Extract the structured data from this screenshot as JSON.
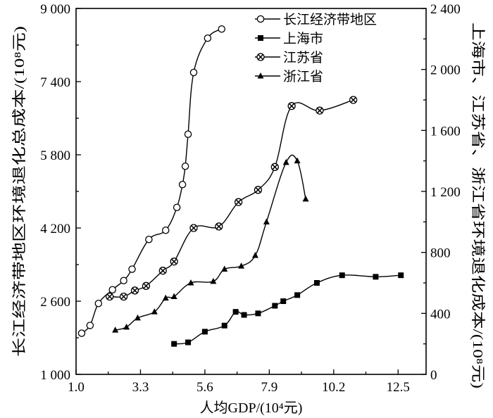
{
  "chart_data": {
    "type": "line",
    "xlabel": "人均GDP/(10⁴元)",
    "ylabel_left": "长江经济带地区环境退化总成本/(10⁸元)",
    "ylabel_right": "上海市、江苏省、浙江省环境退化成本/(10⁸元)",
    "xlim": [
      1.0,
      13.5
    ],
    "ylim_left": [
      1000,
      9000
    ],
    "ylim_right": [
      0,
      2400
    ],
    "x_ticks": [
      "1.0",
      "3.3",
      "5.6",
      "7.9",
      "10.2",
      "12.5"
    ],
    "y_left_ticks": [
      "1 000",
      "2 600",
      "4 200",
      "5 800",
      "7 400",
      "9 000"
    ],
    "y_right_ticks": [
      "0",
      "400",
      "800",
      "1 200",
      "1 600",
      "2 000",
      "2 400"
    ],
    "legend_position": "top-right",
    "series": [
      {
        "name": "长江经济带地区",
        "axis": "left",
        "marker": "circle-open",
        "x": [
          1.2,
          1.5,
          1.8,
          2.3,
          2.7,
          3.0,
          3.6,
          4.2,
          4.6,
          4.8,
          4.9,
          5.0,
          5.2,
          5.7,
          6.2
        ],
        "y": [
          1900,
          2070,
          2550,
          2850,
          3050,
          3300,
          3950,
          4150,
          4650,
          5150,
          5550,
          6250,
          7600,
          8350,
          8550
        ]
      },
      {
        "name": "上海市",
        "axis": "right",
        "marker": "square-filled",
        "x": [
          4.5,
          5.0,
          5.6,
          6.3,
          6.7,
          7.0,
          7.5,
          8.1,
          8.4,
          8.9,
          9.6,
          10.5,
          11.7,
          12.6
        ],
        "y": [
          200,
          210,
          280,
          320,
          410,
          390,
          400,
          450,
          480,
          520,
          600,
          650,
          640,
          650
        ]
      },
      {
        "name": "江苏省",
        "axis": "right",
        "marker": "circle-x",
        "x": [
          2.2,
          2.7,
          3.1,
          3.5,
          4.1,
          4.5,
          5.2,
          6.1,
          6.8,
          7.5,
          8.1,
          8.7,
          9.7,
          10.9
        ],
        "y": [
          510,
          510,
          550,
          580,
          680,
          740,
          960,
          970,
          1130,
          1210,
          1360,
          1760,
          1730,
          1800
        ]
      },
      {
        "name": "浙江省",
        "axis": "right",
        "marker": "triangle-filled",
        "x": [
          2.4,
          2.8,
          3.2,
          3.8,
          4.2,
          4.5,
          5.1,
          5.9,
          6.3,
          6.9,
          7.4,
          7.8,
          8.5,
          8.9,
          9.2
        ],
        "y": [
          290,
          310,
          370,
          410,
          500,
          510,
          600,
          610,
          690,
          710,
          780,
          1000,
          1390,
          1400,
          1150
        ]
      }
    ]
  }
}
